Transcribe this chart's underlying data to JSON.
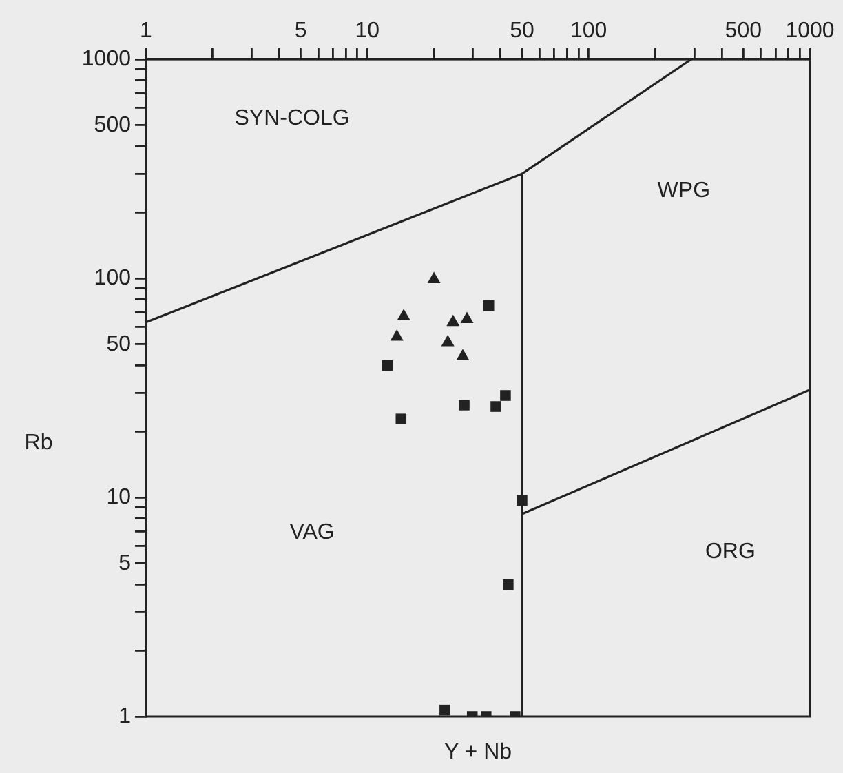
{
  "chart_data": {
    "type": "scatter",
    "xlabel": "Y + Nb",
    "ylabel": "Rb",
    "log": "xy",
    "xlim": [
      1,
      1000
    ],
    "ylim": [
      1,
      1000
    ],
    "xticks": [
      1,
      {
        "value": 2,
        "label": null
      },
      {
        "value": 3,
        "label": null
      },
      {
        "value": 4,
        "label": null
      },
      5,
      {
        "value": 6,
        "label": null
      },
      {
        "value": 7,
        "label": null
      },
      {
        "value": 8,
        "label": null
      },
      {
        "value": 9,
        "label": null
      },
      10,
      {
        "value": 20,
        "label": null
      },
      {
        "value": 30,
        "label": null
      },
      {
        "value": 40,
        "label": null
      },
      50,
      {
        "value": 60,
        "label": null
      },
      {
        "value": 70,
        "label": null
      },
      {
        "value": 80,
        "label": null
      },
      {
        "value": 90,
        "label": null
      },
      100,
      {
        "value": 200,
        "label": null
      },
      {
        "value": 300,
        "label": null
      },
      {
        "value": 400,
        "label": null
      },
      500,
      {
        "value": 600,
        "label": null
      },
      {
        "value": 700,
        "label": null
      },
      {
        "value": 800,
        "label": null
      },
      {
        "value": 900,
        "label": null
      },
      1000
    ],
    "yticks": [
      1,
      {
        "value": 2,
        "label": null
      },
      {
        "value": 3,
        "label": null
      },
      {
        "value": 4,
        "label": null
      },
      5,
      {
        "value": 6,
        "label": null
      },
      {
        "value": 7,
        "label": null
      },
      {
        "value": 8,
        "label": null
      },
      {
        "value": 9,
        "label": null
      },
      10,
      {
        "value": 20,
        "label": null
      },
      {
        "value": 30,
        "label": null
      },
      {
        "value": 40,
        "label": null
      },
      50,
      {
        "value": 60,
        "label": null
      },
      {
        "value": 70,
        "label": null
      },
      {
        "value": 80,
        "label": null
      },
      {
        "value": 90,
        "label": null
      },
      100,
      {
        "value": 200,
        "label": null
      },
      {
        "value": 300,
        "label": null
      },
      {
        "value": 400,
        "label": null
      },
      500,
      {
        "value": 600,
        "label": null
      },
      {
        "value": 700,
        "label": null
      },
      {
        "value": 800,
        "label": null
      },
      {
        "value": 900,
        "label": null
      },
      1000
    ],
    "grid": false,
    "legend": false,
    "series": [
      {
        "marker": "triangle",
        "color": "#222222",
        "x": [
          20,
          14.6,
          13.6,
          24.4,
          28.2,
          23.1,
          27
        ],
        "values": [
          99,
          67,
          54,
          63,
          65,
          51,
          44
        ]
      },
      {
        "marker": "square",
        "color": "#222222",
        "x": [
          35.4,
          12.3,
          27.4,
          38.1,
          42.1,
          14.2,
          50,
          43.3,
          22.4,
          29.8,
          34.4,
          46.5
        ],
        "values": [
          75,
          40,
          26.4,
          26,
          29.2,
          22.8,
          9.7,
          4.0,
          1.07,
          1,
          1,
          1
        ]
      },
      {
        "type": "line",
        "marker": "none",
        "color": "#222222",
        "x": [
          1,
          50,
          291
        ],
        "values": [
          63,
          300,
          1000
        ]
      },
      {
        "type": "line",
        "marker": "none",
        "color": "#222222",
        "x": [
          50,
          50
        ],
        "values": [
          300,
          1
        ]
      },
      {
        "type": "line",
        "marker": "none",
        "color": "#222222",
        "x": [
          50,
          1000
        ],
        "values": [
          8.4,
          31
        ]
      }
    ],
    "annotations": [
      "SYN-COLG",
      "WPG",
      "VAG",
      "ORG"
    ]
  }
}
